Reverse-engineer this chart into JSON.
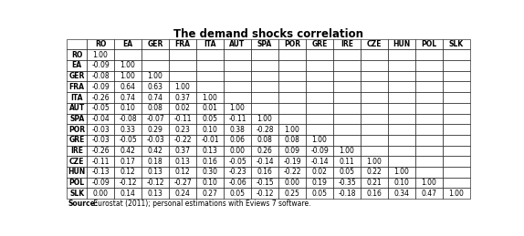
{
  "title": "The demand shocks correlation",
  "source_bold": "Source:",
  "source_rest": " Eurostat (2011); personal estimations with Eviews 7 software.",
  "col_headers": [
    "",
    "RO",
    "EA",
    "GER",
    "FRA",
    "ITA",
    "AUT",
    "SPA",
    "POR",
    "GRE",
    "IRE",
    "CZE",
    "HUN",
    "POL",
    "SLK"
  ],
  "rows": [
    [
      "RO",
      "1.00",
      "",
      "",
      "",
      "",
      "",
      "",
      "",
      "",
      "",
      "",
      "",
      "",
      ""
    ],
    [
      "EA",
      "-0.09",
      "1.00",
      "",
      "",
      "",
      "",
      "",
      "",
      "",
      "",
      "",
      "",
      "",
      ""
    ],
    [
      "GER",
      "-0.08",
      "1.00",
      "1.00",
      "",
      "",
      "",
      "",
      "",
      "",
      "",
      "",
      "",
      "",
      ""
    ],
    [
      "FRA",
      "-0.09",
      "0.64",
      "0.63",
      "1.00",
      "",
      "",
      "",
      "",
      "",
      "",
      "",
      "",
      "",
      ""
    ],
    [
      "ITA",
      "-0.26",
      "0.74",
      "0.74",
      "0.37",
      "1.00",
      "",
      "",
      "",
      "",
      "",
      "",
      "",
      "",
      ""
    ],
    [
      "AUT",
      "-0.05",
      "0.10",
      "0.08",
      "0.02",
      "0.01",
      "1.00",
      "",
      "",
      "",
      "",
      "",
      "",
      "",
      ""
    ],
    [
      "SPA",
      "-0.04",
      "-0.08",
      "-0.07",
      "-0.11",
      "0.05",
      "-0.11",
      "1.00",
      "",
      "",
      "",
      "",
      "",
      "",
      ""
    ],
    [
      "POR",
      "-0.03",
      "0.33",
      "0.29",
      "0.23",
      "0.10",
      "0.38",
      "-0.28",
      "1.00",
      "",
      "",
      "",
      "",
      "",
      ""
    ],
    [
      "GRE",
      "-0.03",
      "-0.05",
      "-0.03",
      "-0.22",
      "-0.01",
      "0.06",
      "0.08",
      "0.08",
      "1.00",
      "",
      "",
      "",
      "",
      ""
    ],
    [
      "IRE",
      "-0.26",
      "0.42",
      "0.42",
      "0.37",
      "0.13",
      "0.00",
      "0.26",
      "0.09",
      "-0.09",
      "1.00",
      "",
      "",
      "",
      ""
    ],
    [
      "CZE",
      "-0.11",
      "0.17",
      "0.18",
      "0.13",
      "0.16",
      "-0.05",
      "-0.14",
      "-0.19",
      "-0.14",
      "0.11",
      "1.00",
      "",
      "",
      ""
    ],
    [
      "HUN",
      "-0.13",
      "0.12",
      "0.13",
      "0.12",
      "0.30",
      "-0.23",
      "0.16",
      "-0.22",
      "0.02",
      "0.05",
      "0.22",
      "1.00",
      "",
      ""
    ],
    [
      "POL",
      "-0.09",
      "-0.12",
      "-0.12",
      "-0.27",
      "0.10",
      "-0.06",
      "-0.15",
      "0.00",
      "0.19",
      "-0.35",
      "0.21",
      "0.10",
      "1.00",
      ""
    ],
    [
      "SLK",
      "0.00",
      "0.14",
      "0.13",
      "0.24",
      "0.27",
      "0.05",
      "-0.12",
      "0.25",
      "0.05",
      "-0.18",
      "0.16",
      "0.34",
      "0.47",
      "1.00"
    ]
  ],
  "bg_color": "#ffffff",
  "line_color": "#000000",
  "cell_fontsize": 5.5,
  "header_fontsize": 5.5,
  "title_fontsize": 8.5,
  "source_fontsize": 5.5,
  "fig_width": 5.74,
  "fig_height": 2.59,
  "dpi": 100
}
